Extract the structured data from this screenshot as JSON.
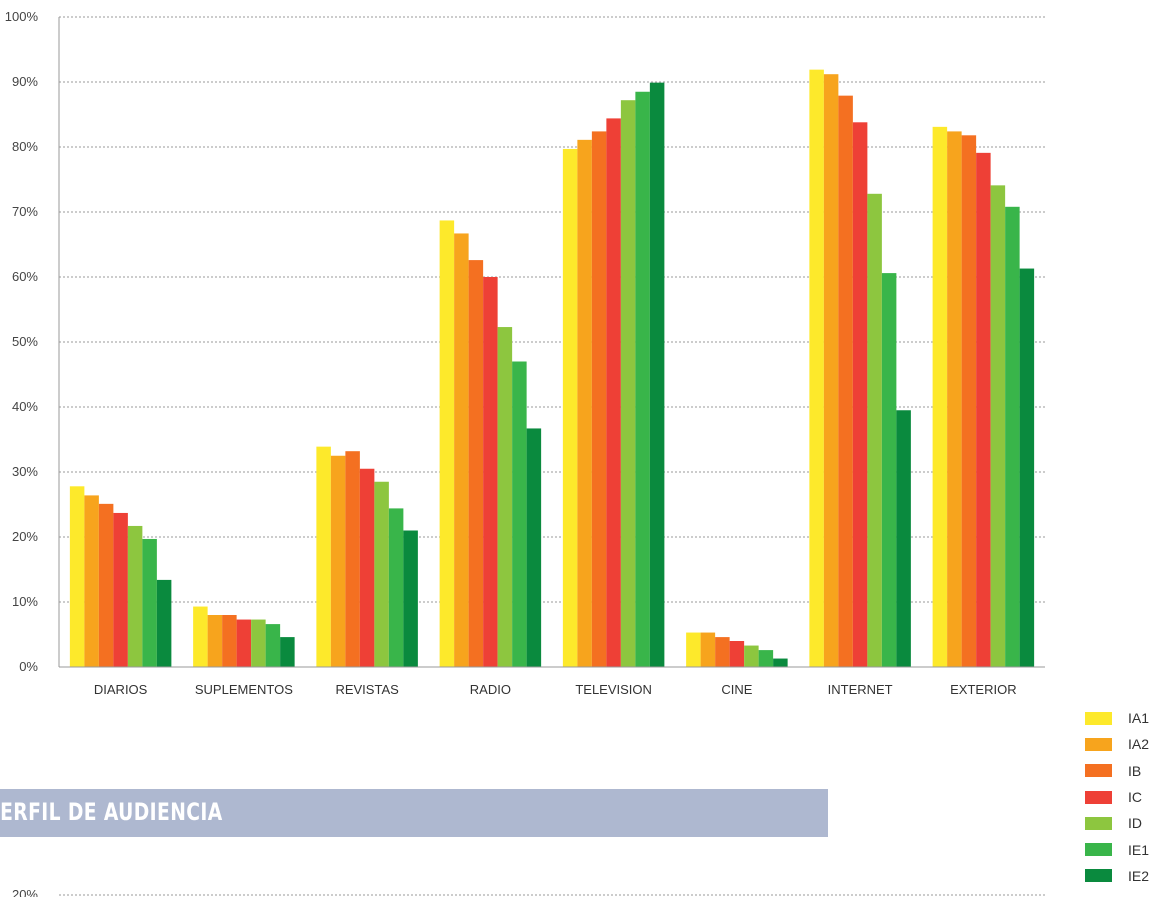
{
  "chart_data": [
    {
      "type": "bar",
      "title": "",
      "xlabel": "",
      "ylabel": "",
      "ylim": [
        0,
        100
      ],
      "y_ticks": [
        "0%",
        "10%",
        "20%",
        "30%",
        "40%",
        "50%",
        "60%",
        "70%",
        "80%",
        "90%",
        "100%"
      ],
      "grid": true,
      "legend_position": "bottom-right",
      "categories": [
        "DIARIOS",
        "SUPLEMENTOS",
        "REVISTAS",
        "RADIO",
        "TELEVISION",
        "CINE",
        "INTERNET",
        "EXTERIOR"
      ],
      "series": [
        {
          "name": "IA1",
          "color": "#fde92b",
          "values": [
            27.8,
            9.3,
            33.9,
            68.7,
            79.7,
            5.3,
            91.9,
            83.1
          ]
        },
        {
          "name": "IA2",
          "color": "#f7a41d",
          "values": [
            26.4,
            8.0,
            32.5,
            66.7,
            81.1,
            5.3,
            91.2,
            82.4
          ]
        },
        {
          "name": "IB",
          "color": "#f47021",
          "values": [
            25.1,
            8.0,
            33.2,
            62.6,
            82.4,
            4.6,
            87.9,
            81.8
          ]
        },
        {
          "name": "IC",
          "color": "#ee4036",
          "values": [
            23.7,
            7.3,
            30.5,
            60.0,
            84.4,
            4.0,
            83.8,
            79.1
          ]
        },
        {
          "name": "ID",
          "color": "#8dc63f",
          "values": [
            21.7,
            7.3,
            28.5,
            52.3,
            87.2,
            3.3,
            72.8,
            74.1
          ]
        },
        {
          "name": "IE1",
          "color": "#39b54a",
          "values": [
            19.7,
            6.6,
            24.4,
            47.0,
            88.5,
            2.6,
            60.6,
            70.8
          ]
        },
        {
          "name": "IE2",
          "color": "#0a8a3e",
          "values": [
            13.4,
            4.6,
            21.0,
            36.7,
            89.9,
            1.3,
            39.5,
            61.3
          ]
        }
      ]
    },
    {
      "type": "bar",
      "title": "",
      "y_ticks": [
        "20%"
      ],
      "grid": true
    }
  ],
  "section": {
    "title": "PERFIL DE AUDIENCIA"
  }
}
